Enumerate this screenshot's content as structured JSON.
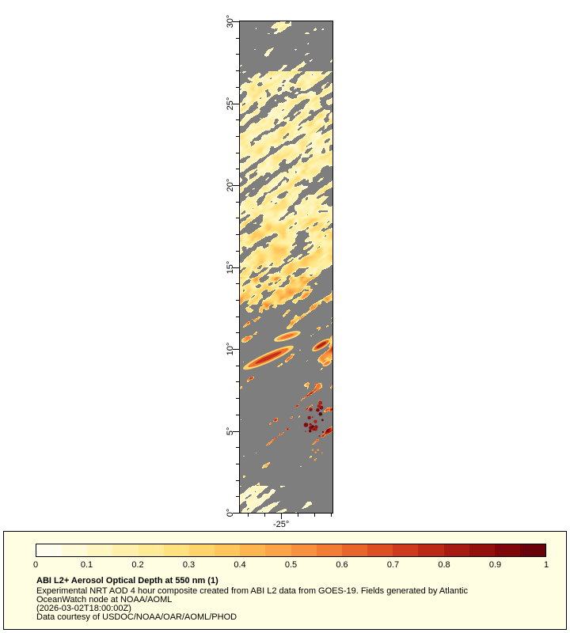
{
  "page": {
    "background": "#FFFFFF"
  },
  "map": {
    "missing_color": "#7E7E7E",
    "y_tick_labels": [
      "30°",
      "25°",
      "20°",
      "15°",
      "10°",
      "5°",
      "0°"
    ],
    "x_tick_label": "-25°"
  },
  "legend": {
    "background": "#FFFDE2",
    "border_color": "#000000",
    "tick_labels": [
      "0",
      "0.1",
      "0.2",
      "0.3",
      "0.4",
      "0.5",
      "0.6",
      "0.7",
      "0.8",
      "0.9",
      "1"
    ],
    "title": "ABI L2+ Aerosol Optical Depth at 550 nm (1)",
    "line1": "Experimental NRT AOD 4 hour composite created from ABI L2 data from GOES-19. Fields generated by Atlantic",
    "line2": "OceanWatch node at NOAA/AOML",
    "timestamp": "(2026-03-02T18:00:00Z)",
    "credit": "Data courtesy of USDOC/NOAA/OAR/AOML/PHOD"
  },
  "chart_data": {
    "type": "heatmap",
    "title": "ABI L2+ Aerosol Optical Depth at 550 nm (1)",
    "variable": "Aerosol Optical Depth at 550 nm",
    "value_range": [
      0,
      1
    ],
    "colorbar_ticks": [
      0,
      0.1,
      0.2,
      0.3,
      0.4,
      0.5,
      0.6,
      0.7,
      0.8,
      0.9,
      1
    ],
    "y_axis": {
      "label": "latitude",
      "tick_labels_deg": [
        30,
        25,
        20,
        15,
        10,
        5,
        0
      ],
      "range": [
        0,
        30
      ]
    },
    "x_axis": {
      "label": "longitude",
      "tick_labels_deg": [
        -25
      ]
    },
    "missing_data_color": "#7E7E7E",
    "colormap_stops": [
      [
        0.0,
        "#FFFFFA"
      ],
      [
        0.1,
        "#FFF8CC"
      ],
      [
        0.2,
        "#FFEFA0"
      ],
      [
        0.3,
        "#FFDC73"
      ],
      [
        0.4,
        "#FFBE54"
      ],
      [
        0.5,
        "#FB9B43"
      ],
      [
        0.6,
        "#F0712F"
      ],
      [
        0.7,
        "#D8431F"
      ],
      [
        0.8,
        "#B22014"
      ],
      [
        0.9,
        "#8A0A0B"
      ],
      [
        1.0,
        "#5E0008"
      ]
    ],
    "approx_aod_by_latitude_band": [
      {
        "lat_band_deg": "27-30",
        "typical_aod": 0.15,
        "coverage": "sparse pale patches"
      },
      {
        "lat_band_deg": "15-27",
        "typical_aod": 0.2,
        "coverage": "dense diagonal cream-yellow streaks over gray gaps"
      },
      {
        "lat_band_deg": "12-15",
        "typical_aod": 0.35,
        "coverage": "moderate yellow-orange streaks"
      },
      {
        "lat_band_deg": "9-12",
        "typical_aod": 0.65,
        "coverage": "sparse bright orange-red elongated streaks"
      },
      {
        "lat_band_deg": "4-7",
        "typical_aod": 0.9,
        "coverage": "isolated dark-red spot cluster"
      },
      {
        "lat_band_deg": "0-2",
        "typical_aod": 0.15,
        "coverage": "scattered pale patches"
      }
    ]
  }
}
